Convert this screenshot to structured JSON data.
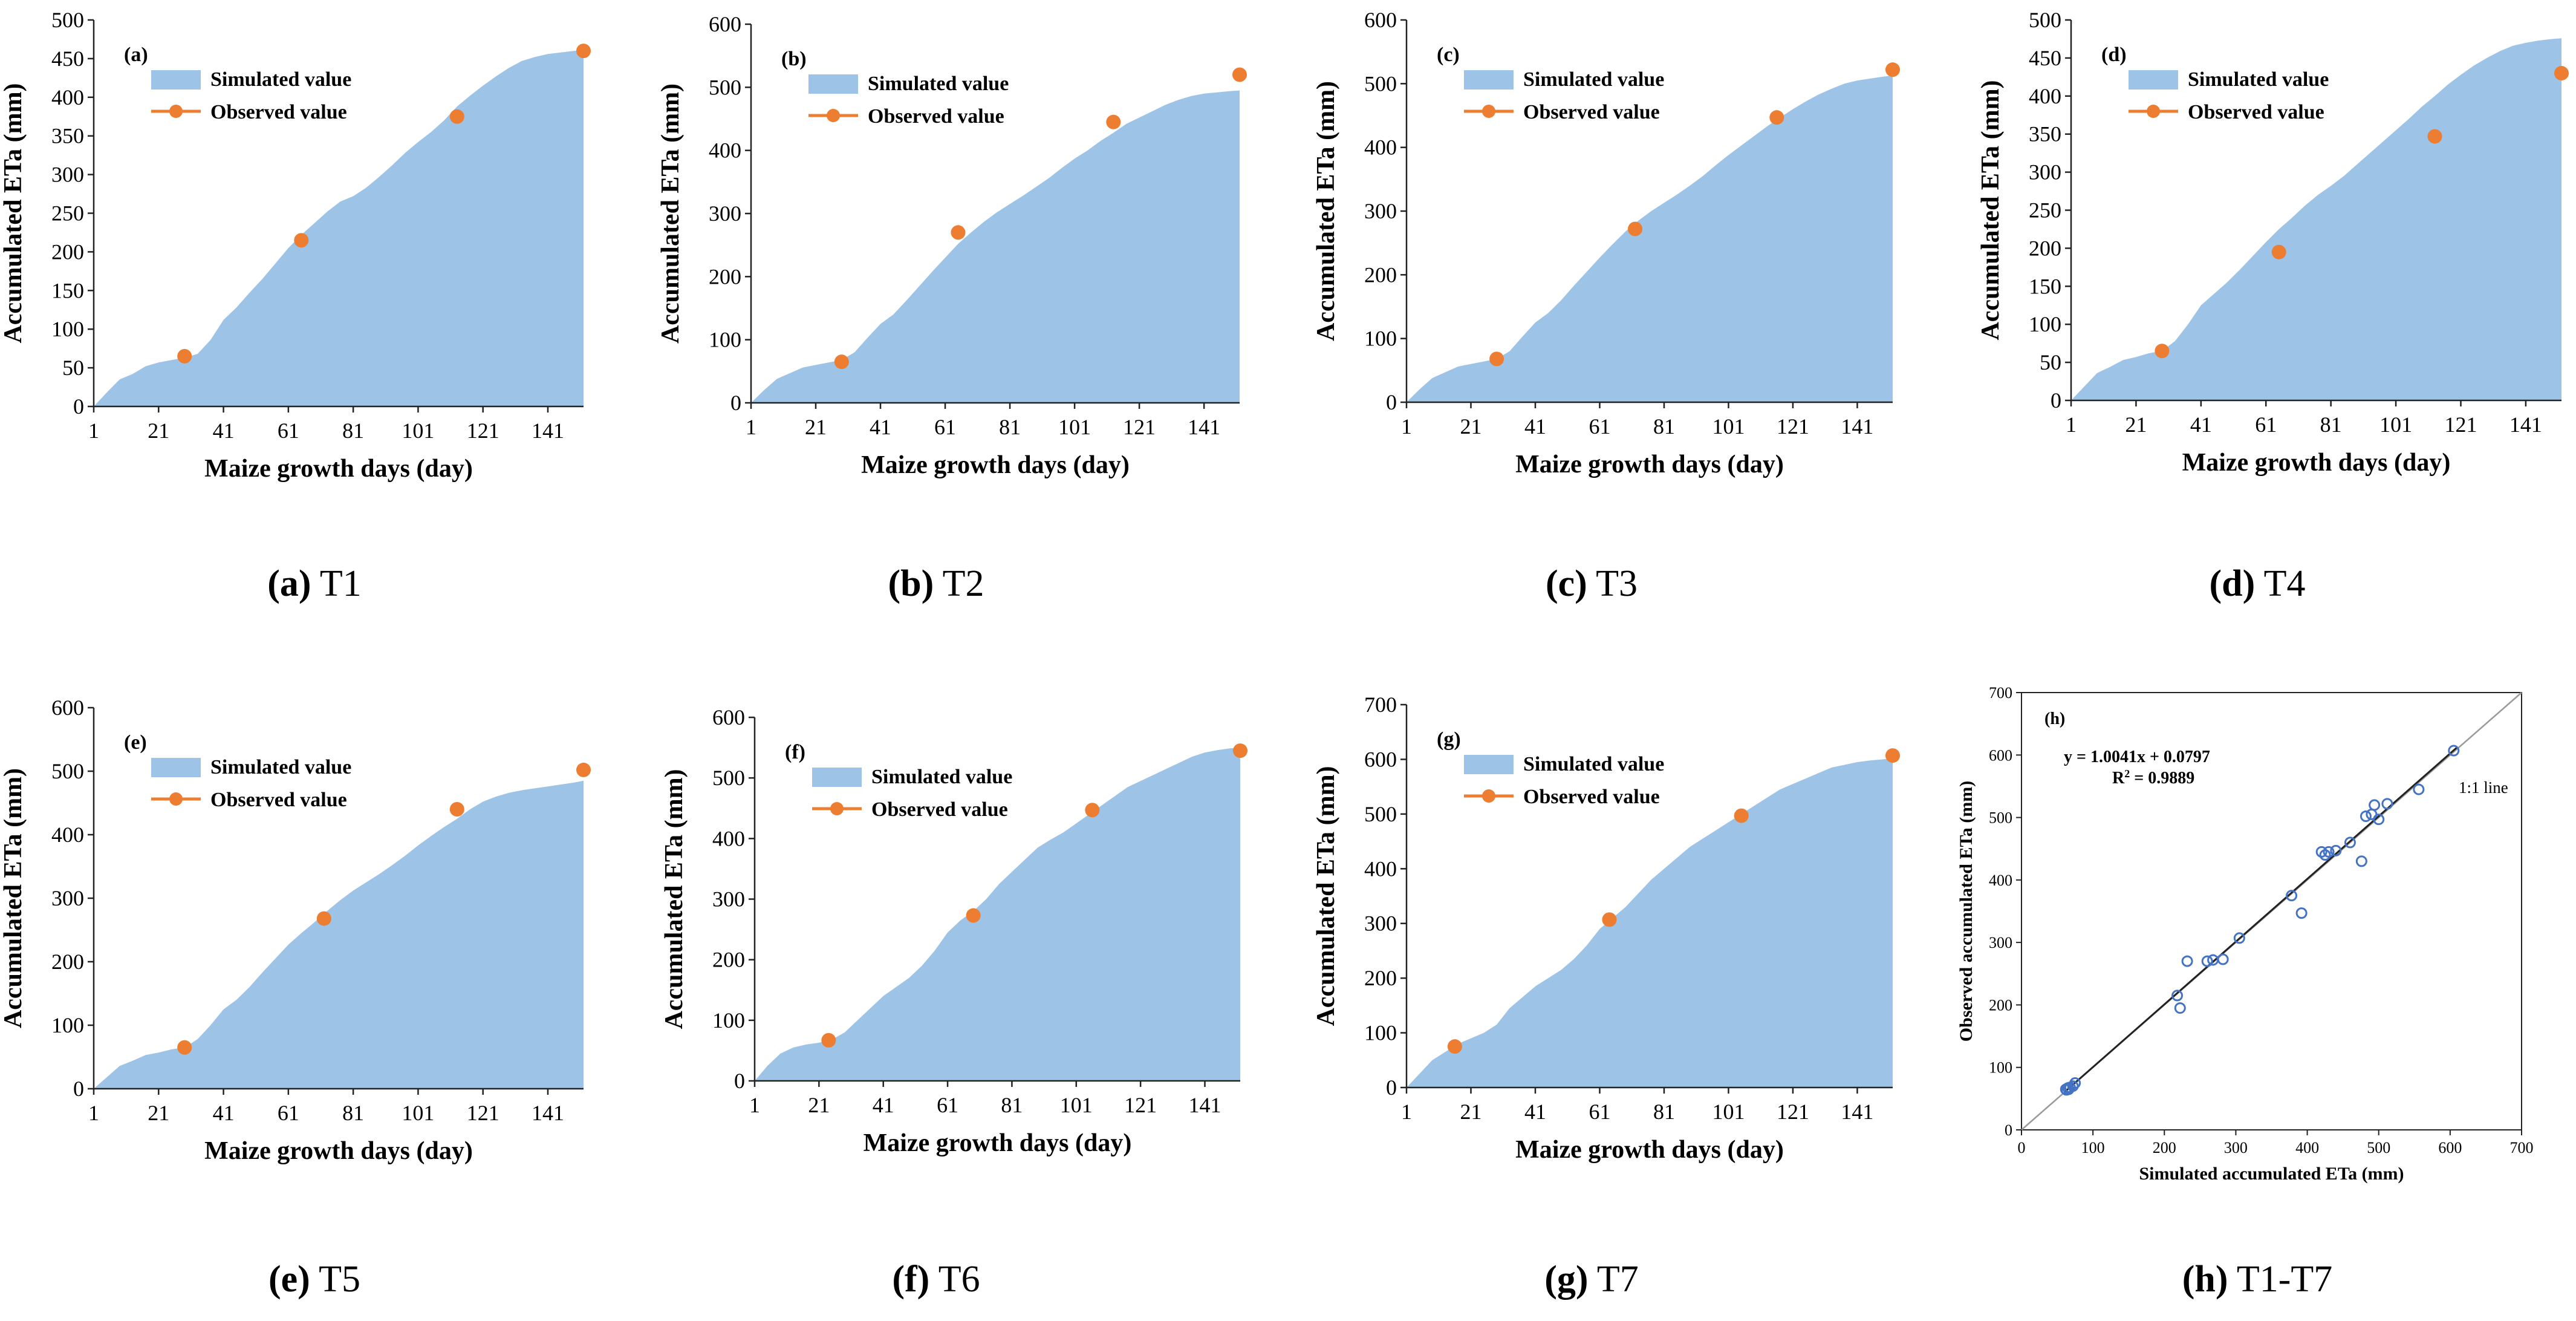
{
  "colors": {
    "simulated_fill": "#9dc3e6",
    "observed_marker": "#ed7d31",
    "axis": "#222222",
    "scatter_marker": "#4472c4",
    "fit_line": "#222222",
    "one_to_one_line": "#9a9a9a"
  },
  "chart_data": [
    {
      "type": "area",
      "panel_label": "(a)",
      "caption_bold": "(a)",
      "caption_text": "T1",
      "xlabel": "Maize growth days (day)",
      "ylabel": "Accumulated ETa (mm)",
      "xlim": [
        1,
        152
      ],
      "ylim": [
        0,
        500
      ],
      "xticks": [
        "1",
        "21",
        "41",
        "61",
        "81",
        "101",
        "121",
        "141"
      ],
      "yticks": [
        "0",
        "50",
        "100",
        "150",
        "200",
        "250",
        "300",
        "350",
        "400",
        "450",
        "500"
      ],
      "legend": {
        "simulated": "Simulated value",
        "observed": "Observed value"
      },
      "simulated": {
        "x": [
          1,
          5,
          9,
          13,
          17,
          21,
          25,
          29,
          33,
          37,
          41,
          45,
          49,
          53,
          57,
          61,
          65,
          69,
          73,
          77,
          81,
          85,
          89,
          93,
          97,
          101,
          105,
          109,
          113,
          117,
          121,
          125,
          129,
          133,
          137,
          141,
          145,
          149,
          152
        ],
        "y": [
          0,
          18,
          35,
          42,
          52,
          57,
          60,
          63,
          68,
          86,
          112,
          128,
          147,
          165,
          185,
          205,
          222,
          237,
          252,
          265,
          272,
          283,
          297,
          312,
          328,
          342,
          355,
          370,
          388,
          402,
          415,
          427,
          438,
          447,
          452,
          456,
          458,
          460,
          461
        ]
      },
      "observed": {
        "x": [
          29,
          65,
          113,
          152
        ],
        "y": [
          65,
          215,
          375,
          460
        ]
      }
    },
    {
      "type": "area",
      "panel_label": "(b)",
      "caption_bold": "(b)",
      "caption_text": "T2",
      "xlabel": "Maize growth days (day)",
      "ylabel": "Accumulated ETa (mm)",
      "xlim": [
        1,
        152
      ],
      "ylim": [
        0,
        600
      ],
      "xticks": [
        "1",
        "21",
        "41",
        "61",
        "81",
        "101",
        "121",
        "141"
      ],
      "yticks": [
        "0",
        "100",
        "200",
        "300",
        "400",
        "500",
        "600"
      ],
      "legend": {
        "simulated": "Simulated value",
        "observed": "Observed value"
      },
      "simulated": {
        "x": [
          1,
          5,
          9,
          13,
          17,
          21,
          25,
          29,
          33,
          37,
          41,
          45,
          49,
          53,
          57,
          61,
          65,
          69,
          73,
          77,
          81,
          85,
          89,
          93,
          97,
          101,
          105,
          109,
          113,
          117,
          121,
          125,
          129,
          133,
          137,
          141,
          145,
          149,
          152
        ],
        "y": [
          0,
          20,
          38,
          47,
          56,
          60,
          64,
          68,
          80,
          103,
          125,
          140,
          162,
          185,
          208,
          230,
          252,
          270,
          287,
          302,
          315,
          328,
          342,
          356,
          372,
          387,
          400,
          415,
          428,
          442,
          452,
          462,
          472,
          480,
          486,
          490,
          492,
          494,
          495
        ]
      },
      "observed": {
        "x": [
          29,
          65,
          113,
          152
        ],
        "y": [
          65,
          270,
          445,
          520
        ]
      }
    },
    {
      "type": "area",
      "panel_label": "(c)",
      "caption_bold": "(c)",
      "caption_text": "T3",
      "xlabel": "Maize growth days (day)",
      "ylabel": "Accumulated ETa (mm)",
      "xlim": [
        1,
        152
      ],
      "ylim": [
        0,
        600
      ],
      "xticks": [
        "1",
        "21",
        "41",
        "61",
        "81",
        "101",
        "121",
        "141"
      ],
      "yticks": [
        "0",
        "100",
        "200",
        "300",
        "400",
        "500",
        "600"
      ],
      "legend": {
        "simulated": "Simulated value",
        "observed": "Observed value"
      },
      "simulated": {
        "x": [
          1,
          5,
          9,
          13,
          17,
          21,
          25,
          29,
          33,
          37,
          41,
          45,
          49,
          53,
          57,
          61,
          65,
          69,
          73,
          77,
          81,
          85,
          89,
          93,
          97,
          101,
          105,
          109,
          113,
          117,
          121,
          125,
          129,
          133,
          137,
          141,
          145,
          149,
          152
        ],
        "y": [
          0,
          20,
          38,
          47,
          56,
          60,
          64,
          68,
          80,
          103,
          125,
          140,
          160,
          183,
          205,
          227,
          248,
          268,
          285,
          300,
          313,
          326,
          340,
          355,
          372,
          388,
          403,
          418,
          433,
          447,
          460,
          472,
          483,
          492,
          500,
          505,
          508,
          511,
          513
        ]
      },
      "observed": {
        "x": [
          29,
          72,
          116,
          152
        ],
        "y": [
          68,
          272,
          447,
          522
        ]
      }
    },
    {
      "type": "area",
      "panel_label": "(d)",
      "caption_bold": "(d)",
      "caption_text": "T4",
      "xlabel": "Maize growth days (day)",
      "ylabel": "Accumulated ETa (mm)",
      "xlim": [
        1,
        152
      ],
      "ylim": [
        0,
        500
      ],
      "xticks": [
        "1",
        "21",
        "41",
        "61",
        "81",
        "101",
        "121",
        "141"
      ],
      "yticks": [
        "0",
        "50",
        "100",
        "150",
        "200",
        "250",
        "300",
        "350",
        "400",
        "450",
        "500"
      ],
      "legend": {
        "simulated": "Simulated value",
        "observed": "Observed value"
      },
      "simulated": {
        "x": [
          1,
          5,
          9,
          13,
          17,
          21,
          25,
          29,
          33,
          37,
          41,
          45,
          49,
          53,
          57,
          61,
          65,
          69,
          73,
          77,
          81,
          85,
          89,
          93,
          97,
          101,
          105,
          109,
          113,
          117,
          121,
          125,
          129,
          133,
          137,
          141,
          145,
          149,
          152
        ],
        "y": [
          0,
          18,
          36,
          44,
          53,
          57,
          62,
          65,
          78,
          100,
          125,
          140,
          155,
          172,
          190,
          208,
          225,
          240,
          256,
          270,
          282,
          295,
          310,
          325,
          340,
          355,
          370,
          386,
          400,
          415,
          428,
          440,
          450,
          459,
          466,
          470,
          473,
          475,
          476
        ]
      },
      "observed": {
        "x": [
          29,
          65,
          113,
          152
        ],
        "y": [
          65,
          195,
          347,
          430
        ]
      }
    },
    {
      "type": "area",
      "panel_label": "(e)",
      "caption_bold": "(e)",
      "caption_text": "T5",
      "xlabel": "Maize growth days (day)",
      "ylabel": "Accumulated ETa (mm)",
      "xlim": [
        1,
        152
      ],
      "ylim": [
        0,
        600
      ],
      "xticks": [
        "1",
        "21",
        "41",
        "61",
        "81",
        "101",
        "121",
        "141"
      ],
      "yticks": [
        "0",
        "100",
        "200",
        "300",
        "400",
        "500",
        "600"
      ],
      "legend": {
        "simulated": "Simulated value",
        "observed": "Observed value"
      },
      "simulated": {
        "x": [
          1,
          5,
          9,
          13,
          17,
          21,
          25,
          29,
          33,
          37,
          41,
          45,
          49,
          53,
          57,
          61,
          65,
          69,
          73,
          77,
          81,
          85,
          89,
          93,
          97,
          101,
          105,
          109,
          113,
          117,
          121,
          125,
          129,
          133,
          137,
          141,
          145,
          149,
          152
        ],
        "y": [
          0,
          18,
          36,
          44,
          53,
          57,
          62,
          65,
          78,
          100,
          125,
          140,
          160,
          183,
          205,
          227,
          245,
          262,
          280,
          297,
          312,
          325,
          338,
          352,
          367,
          383,
          398,
          412,
          425,
          440,
          452,
          460,
          466,
          470,
          473,
          476,
          479,
          482,
          485
        ]
      },
      "observed": {
        "x": [
          29,
          72,
          113,
          152
        ],
        "y": [
          65,
          268,
          440,
          502
        ]
      }
    },
    {
      "type": "area",
      "panel_label": "(f)",
      "caption_bold": "(f)",
      "caption_text": "T6",
      "xlabel": "Maize growth days (day)",
      "ylabel": "Accumulated ETa (mm)",
      "xlim": [
        1,
        152
      ],
      "ylim": [
        0,
        600
      ],
      "xticks": [
        "1",
        "21",
        "41",
        "61",
        "81",
        "101",
        "121",
        "141"
      ],
      "yticks": [
        "0",
        "100",
        "200",
        "300",
        "400",
        "500",
        "600"
      ],
      "legend": {
        "simulated": "Simulated value",
        "observed": "Observed value"
      },
      "simulated": {
        "x": [
          1,
          5,
          9,
          13,
          17,
          21,
          25,
          29,
          33,
          37,
          41,
          45,
          49,
          53,
          57,
          61,
          65,
          69,
          73,
          77,
          81,
          85,
          89,
          93,
          97,
          101,
          105,
          109,
          113,
          117,
          121,
          125,
          129,
          133,
          137,
          141,
          145,
          149,
          152
        ],
        "y": [
          0,
          25,
          45,
          55,
          60,
          63,
          68,
          80,
          100,
          120,
          140,
          155,
          170,
          190,
          215,
          245,
          265,
          280,
          300,
          325,
          345,
          365,
          385,
          398,
          410,
          425,
          440,
          455,
          470,
          485,
          495,
          505,
          515,
          525,
          535,
          542,
          546,
          549,
          550
        ]
      },
      "observed": {
        "x": [
          24,
          69,
          106,
          152
        ],
        "y": [
          67,
          273,
          447,
          545
        ]
      }
    },
    {
      "type": "area",
      "panel_label": "(g)",
      "caption_bold": "(g)",
      "caption_text": "T7",
      "xlabel": "Maize growth days (day)",
      "ylabel": "Accumulated ETa (mm)",
      "xlim": [
        1,
        152
      ],
      "ylim": [
        0,
        700
      ],
      "xticks": [
        "1",
        "21",
        "41",
        "61",
        "81",
        "101",
        "121",
        "141"
      ],
      "yticks": [
        "0",
        "100",
        "200",
        "300",
        "400",
        "500",
        "600",
        "700"
      ],
      "legend": {
        "simulated": "Simulated value",
        "observed": "Observed value"
      },
      "simulated": {
        "x": [
          1,
          5,
          9,
          13,
          17,
          21,
          25,
          29,
          33,
          37,
          41,
          45,
          49,
          53,
          57,
          61,
          65,
          69,
          73,
          77,
          81,
          85,
          89,
          93,
          97,
          101,
          105,
          109,
          113,
          117,
          121,
          125,
          129,
          133,
          137,
          141,
          145,
          149,
          152
        ],
        "y": [
          0,
          25,
          50,
          65,
          80,
          90,
          100,
          115,
          145,
          165,
          185,
          200,
          215,
          235,
          260,
          290,
          310,
          330,
          355,
          380,
          400,
          420,
          440,
          455,
          470,
          485,
          500,
          515,
          530,
          545,
          555,
          565,
          575,
          585,
          590,
          595,
          598,
          600,
          602
        ]
      },
      "observed": {
        "x": [
          16,
          64,
          105,
          152
        ],
        "y": [
          75,
          307,
          497,
          607
        ]
      }
    },
    {
      "type": "scatter",
      "panel_label": "(h)",
      "caption_bold": "(h)",
      "caption_text": "T1-T7",
      "xlabel": "Simulated accumulated ETa (mm)",
      "ylabel": "Observed accumulated ETa (mm)",
      "xlim": [
        0,
        700
      ],
      "ylim": [
        0,
        700
      ],
      "xticks": [
        "0",
        "100",
        "200",
        "300",
        "400",
        "500",
        "600",
        "700"
      ],
      "yticks": [
        "0",
        "100",
        "200",
        "300",
        "400",
        "500",
        "600",
        "700"
      ],
      "equation": "y = 1.0041x + 0.0797",
      "r2_label": "R",
      "r2_sup": "2",
      "r2_value": " = 0.9889",
      "one_to_one_label": "1:1 line",
      "fit": {
        "slope": 1.0041,
        "intercept": 0.0797
      },
      "points": {
        "x": [
          62,
          63,
          65,
          66,
          68,
          72,
          75,
          218,
          222,
          232,
          260,
          268,
          282,
          305,
          378,
          392,
          420,
          425,
          430,
          440,
          460,
          476,
          482,
          490,
          494,
          500,
          512,
          556,
          605
        ],
        "y": [
          65,
          64,
          67,
          65,
          68,
          70,
          75,
          215,
          195,
          270,
          270,
          272,
          273,
          307,
          375,
          347,
          445,
          440,
          445,
          447,
          460,
          430,
          502,
          505,
          520,
          497,
          522,
          545,
          607
        ]
      }
    }
  ]
}
